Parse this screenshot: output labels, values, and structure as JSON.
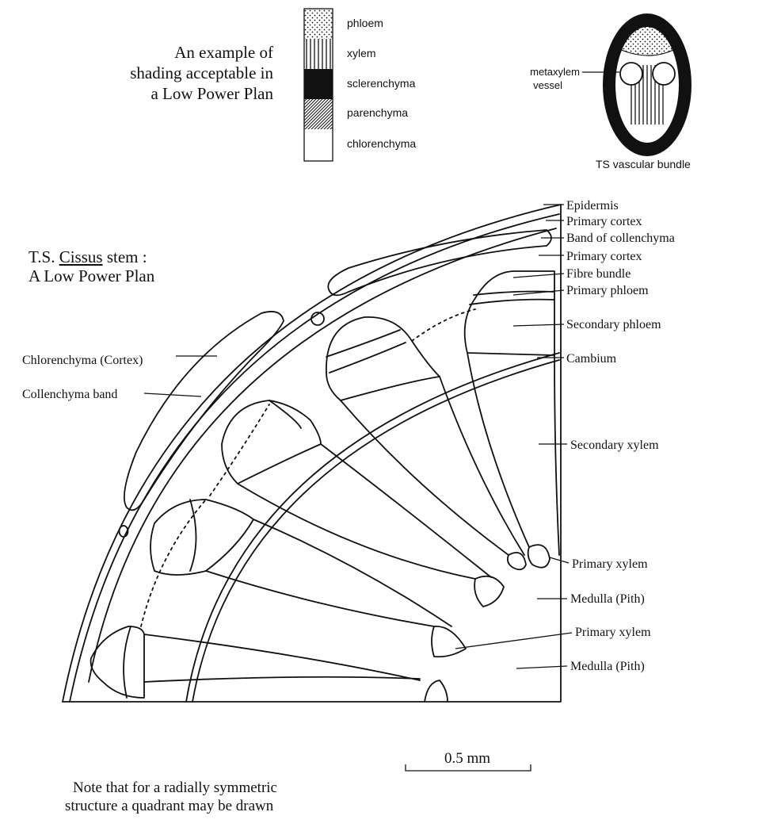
{
  "shading_key": {
    "intro": [
      "An example of",
      "shading acceptable in",
      "a Low Power Plan"
    ],
    "items": [
      {
        "label": "phloem",
        "pattern": "dots"
      },
      {
        "label": "xylem",
        "pattern": "vertical-lines"
      },
      {
        "label": "sclerenchyma",
        "pattern": "solid-black"
      },
      {
        "label": "parenchyma",
        "pattern": "diagonal-hatch"
      },
      {
        "label": "chlorenchyma",
        "pattern": "blank"
      }
    ]
  },
  "vascular_bundle": {
    "label": [
      "metaxylem",
      "vessel"
    ],
    "caption": "TS vascular bundle"
  },
  "plan": {
    "title": [
      "T.S. ",
      "Cissus",
      " stem :"
    ],
    "subtitle": "A Low Power Plan",
    "left_labels": [
      "Chlorenchyma (Cortex)",
      "Collenchyma band"
    ],
    "right_labels": [
      "Epidermis",
      "Primary cortex",
      "Band of collenchyma",
      "Primary cortex",
      "Fibre bundle",
      "Primary phloem",
      "Secondary phloem",
      "Cambium",
      "Secondary xylem",
      "Primary xylem",
      "Medulla (Pith)",
      "Primary xylem",
      "Medulla (Pith)"
    ]
  },
  "scale_bar": {
    "label": "0.5 mm"
  },
  "note": [
    "Note that for a radially symmetric",
    "structure a quadrant may be drawn"
  ]
}
